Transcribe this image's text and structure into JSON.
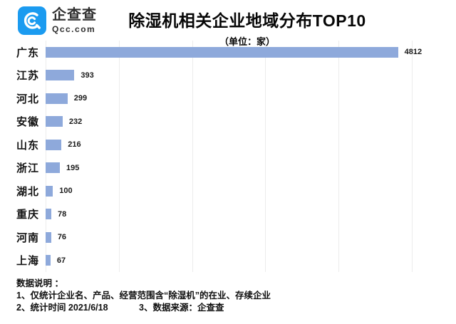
{
  "logo": {
    "name": "企查查",
    "domain": "Qcc.com",
    "brand_color": "#1b9bf0"
  },
  "header": {
    "title": "除湿机相关企业地域分布TOP10",
    "subtitle": "（单位：家）"
  },
  "chart_data": {
    "type": "bar",
    "orientation": "horizontal",
    "title": "除湿机相关企业地域分布TOP10",
    "subtitle": "（单位：家）",
    "unit": "家",
    "categories": [
      "广东",
      "江苏",
      "河北",
      "安徽",
      "山东",
      "浙江",
      "湖北",
      "重庆",
      "河南",
      "上海"
    ],
    "values": [
      4812,
      393,
      299,
      232,
      216,
      195,
      100,
      78,
      76,
      67
    ],
    "xlim": [
      0,
      5000
    ],
    "gridline_interval": 1000,
    "grid": true,
    "value_labels": true,
    "bar_color": "#8EA9DB"
  },
  "footer": {
    "heading": "数据说明 ：",
    "note1": "1、仅统计企业名、产品、经营范围含“除湿机”的在业、存续企业",
    "note2": "2、统计时间 2021/6/18",
    "note3": "3、数据来源：企查查"
  }
}
